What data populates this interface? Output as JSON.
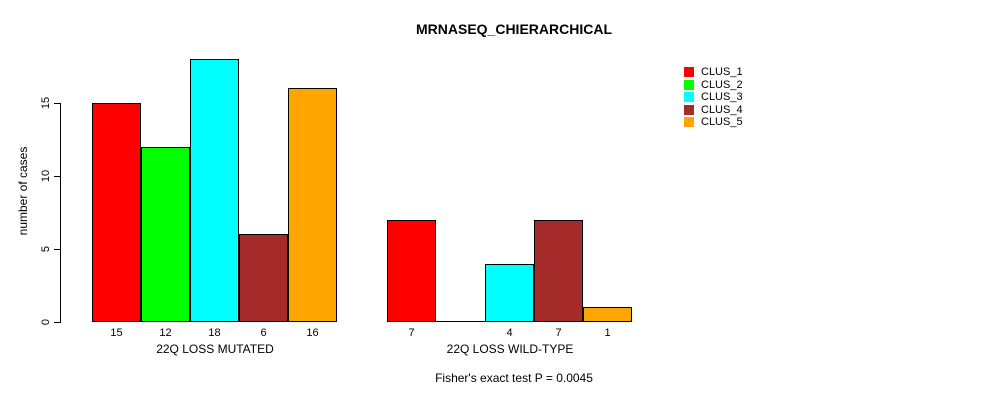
{
  "title": "MRNASEQ_CHIERARCHICAL",
  "footer": "Fisher's exact test P = 0.0045",
  "y_axis": {
    "label": "number of cases",
    "tick_labels": [
      "0",
      "5",
      "10",
      "15"
    ]
  },
  "legend": {
    "entries": [
      {
        "label": "CLUS_1",
        "color": "#FF0000"
      },
      {
        "label": "CLUS_2",
        "color": "#00FF00"
      },
      {
        "label": "CLUS_3",
        "color": "#00FFFF"
      },
      {
        "label": "CLUS_4",
        "color": "#A52A2A"
      },
      {
        "label": "CLUS_5",
        "color": "#FFA500"
      }
    ]
  },
  "chart_data": {
    "type": "bar",
    "title": "MRNASEQ_CHIERARCHICAL",
    "xlabel": "",
    "ylabel": "number of cases",
    "categories": [
      "22Q LOSS MUTATED",
      "22Q LOSS WILD-TYPE"
    ],
    "series": [
      {
        "name": "CLUS_1",
        "color": "#FF0000",
        "values": [
          15,
          7
        ]
      },
      {
        "name": "CLUS_2",
        "color": "#00FF00",
        "values": [
          12,
          0
        ]
      },
      {
        "name": "CLUS_3",
        "color": "#00FFFF",
        "values": [
          18,
          4
        ]
      },
      {
        "name": "CLUS_4",
        "color": "#A52A2A",
        "values": [
          6,
          7
        ]
      },
      {
        "name": "CLUS_5",
        "color": "#FFA500",
        "values": [
          16,
          1
        ]
      }
    ],
    "bar_value_labels": [
      [
        "15",
        "12",
        "18",
        "6",
        "16"
      ],
      [
        "7",
        "",
        "4",
        "7",
        "1"
      ]
    ],
    "yticks": [
      0,
      5,
      10,
      15
    ],
    "ylim": [
      0,
      18.8
    ],
    "grid": false,
    "bar_border_color": "#000000",
    "legend_position": "right-outside",
    "annotation": "Fisher's exact test P = 0.0045"
  }
}
